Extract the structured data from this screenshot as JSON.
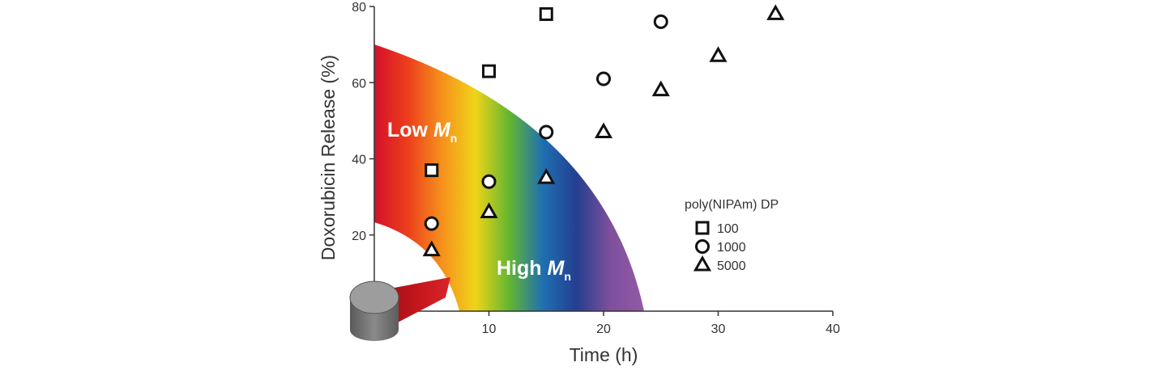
{
  "chart_data": {
    "type": "scatter",
    "title": "",
    "xlabel": "Time (h)",
    "ylabel": "Doxorubicin Release (%)",
    "xlim": [
      0,
      40
    ],
    "ylim": [
      0,
      80
    ],
    "x_ticks": [
      10,
      20,
      30,
      40
    ],
    "y_ticks": [
      20,
      40,
      60,
      80
    ],
    "grid": false,
    "legend": {
      "title": "poly(NIPAm) DP",
      "placement": "right"
    },
    "series": [
      {
        "name": "100",
        "marker": "square",
        "points": [
          [
            5,
            37
          ],
          [
            10,
            63
          ],
          [
            15,
            78
          ]
        ]
      },
      {
        "name": "1000",
        "marker": "circle",
        "points": [
          [
            5,
            23
          ],
          [
            10,
            34
          ],
          [
            15,
            47
          ],
          [
            20,
            61
          ],
          [
            25,
            76
          ]
        ]
      },
      {
        "name": "5000",
        "marker": "triangle",
        "points": [
          [
            5,
            16
          ],
          [
            10,
            26
          ],
          [
            15,
            35
          ],
          [
            20,
            47
          ],
          [
            25,
            58
          ],
          [
            30,
            67
          ],
          [
            35,
            78
          ]
        ]
      }
    ],
    "annotations": {
      "low": {
        "prefix": "Low ",
        "symbol": "M",
        "sub": "n"
      },
      "high": {
        "prefix": "High ",
        "symbol": "M",
        "sub": "n"
      }
    },
    "colors": {
      "gradient": [
        "#d4102a",
        "#ec3f1c",
        "#f6901c",
        "#efd419",
        "#63b630",
        "#1f6fb2",
        "#243f8f",
        "#7e4f9c",
        "#935aa6"
      ],
      "device_body": "#7c7c7c",
      "device_top": "#a0a0a0",
      "device_cone": "#c4161c"
    }
  }
}
